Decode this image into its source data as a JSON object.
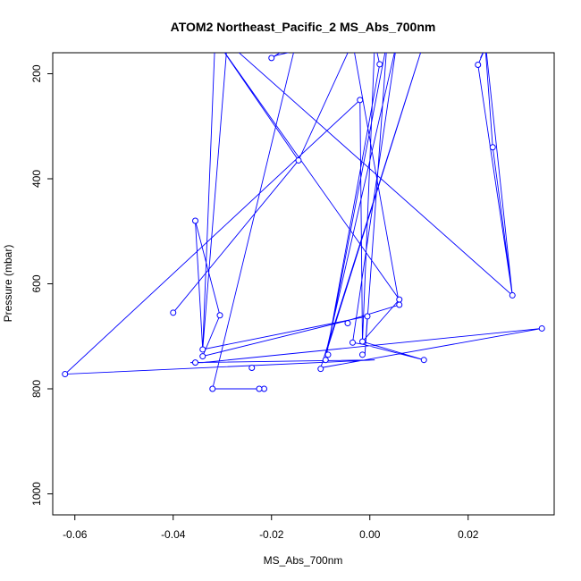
{
  "chart_data": {
    "type": "line",
    "title": "ATOM2 Northeast_Pacific_2 MS_Abs_700nm",
    "xlabel": "MS_Abs_700nm",
    "ylabel": "Pressure (mbar)",
    "xlim": [
      -0.0645,
      0.0375
    ],
    "ylim": [
      1040,
      160
    ],
    "y_inverted": true,
    "grid": false,
    "x_ticks": [
      -0.06,
      -0.04,
      -0.02,
      0.0,
      0.02
    ],
    "x_tick_labels": [
      "-0.06",
      "-0.04",
      "-0.02",
      "0.00",
      "0.02"
    ],
    "y_ticks": [
      200,
      400,
      600,
      800,
      1000
    ],
    "y_tick_labels": [
      "200",
      "400",
      "600",
      "800",
      "1000"
    ],
    "series": [
      {
        "color": "#0000ff",
        "marker": "open-circle",
        "points": [
          [
            -0.0215,
            800
          ],
          [
            -0.032,
            800
          ],
          [
            -0.015,
            140
          ],
          [
            -0.02,
            170
          ],
          [
            -0.019,
            165
          ],
          [
            -0.012,
            150
          ],
          [
            -0.016,
            140
          ],
          [
            -0.0315,
            140
          ],
          [
            -0.034,
            725
          ],
          [
            -0.0005,
            662
          ],
          [
            -0.001,
            735
          ],
          [
            0.0035,
            140
          ],
          [
            -0.009,
            745
          ],
          [
            0.002,
            182
          ],
          [
            0.001,
            140
          ],
          [
            -0.0015,
            710
          ],
          [
            0.011,
            745
          ],
          [
            -0.0015,
            715
          ],
          [
            -0.0035,
            712
          ],
          [
            0.0055,
            140
          ],
          [
            -0.009,
            735
          ],
          [
            0.011,
            140
          ],
          [
            -0.01,
            760
          ],
          [
            0.035,
            685
          ],
          [
            -0.034,
            750
          ],
          [
            -0.0365,
            750
          ],
          [
            0.001,
            745
          ],
          [
            -0.062,
            772
          ],
          [
            -0.002,
            250
          ],
          [
            -0.0015,
            710
          ],
          [
            0.006,
            630
          ],
          [
            -0.031,
            140
          ],
          [
            -0.0145,
            365
          ],
          [
            -0.04,
            655
          ],
          [
            -0.0145,
            365
          ],
          [
            -0.0035,
            140
          ],
          [
            0.006,
            640
          ],
          [
            -0.0045,
            670
          ],
          [
            -0.034,
            738
          ],
          [
            -0.0305,
            660
          ],
          [
            -0.0355,
            480
          ],
          [
            -0.034,
            725
          ],
          [
            -0.029,
            140
          ],
          [
            0.029,
            622
          ],
          [
            0.022,
            183
          ],
          [
            0.024,
            140
          ],
          [
            0.0235,
            150
          ],
          [
            0.025,
            340
          ],
          [
            0.029,
            622
          ],
          [
            0.0235,
            140
          ],
          [
            0.0235,
            150
          ],
          [
            0.0225,
            170
          ]
        ]
      }
    ],
    "markers_shown": [
      [
        -0.0215,
        800
      ],
      [
        -0.0225,
        800
      ],
      [
        -0.032,
        800
      ],
      [
        -0.024,
        760
      ],
      [
        -0.02,
        170
      ],
      [
        -0.002,
        250
      ],
      [
        0.002,
        182
      ],
      [
        0.022,
        183
      ],
      [
        0.025,
        340
      ],
      [
        -0.0145,
        365
      ],
      [
        -0.0355,
        480
      ],
      [
        0.029,
        622
      ],
      [
        0.006,
        630
      ],
      [
        0.006,
        640
      ],
      [
        -0.04,
        655
      ],
      [
        -0.0305,
        660
      ],
      [
        -0.0005,
        662
      ],
      [
        -0.0045,
        675
      ],
      [
        0.035,
        685
      ],
      [
        -0.0015,
        710
      ],
      [
        -0.0035,
        712
      ],
      [
        -0.034,
        725
      ],
      [
        -0.034,
        738
      ],
      [
        -0.0015,
        735
      ],
      [
        -0.0085,
        735
      ],
      [
        -0.009,
        745
      ],
      [
        0.011,
        745
      ],
      [
        -0.0355,
        750
      ],
      [
        -0.01,
        762
      ],
      [
        -0.062,
        772
      ]
    ]
  }
}
